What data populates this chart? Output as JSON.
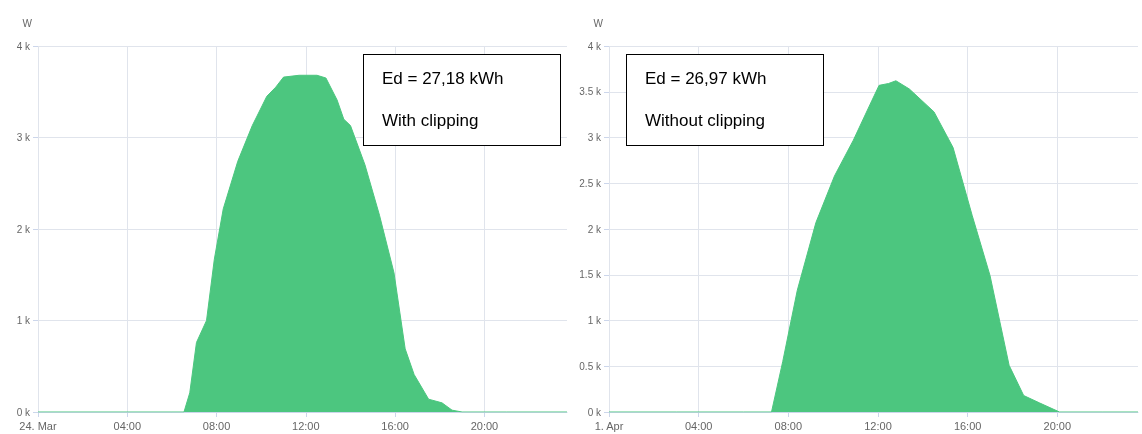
{
  "chart_data": [
    {
      "type": "area",
      "ylabel": "W",
      "color": "#4cc67f",
      "grid": true,
      "marker": "none",
      "x": [
        0,
        3,
        6,
        6.54,
        6.8,
        7.1,
        7.55,
        7.9,
        8.3,
        8.95,
        9.6,
        10.25,
        10.65,
        11.0,
        11.7,
        12.5,
        12.9,
        13.4,
        13.7,
        14.0,
        14.65,
        15.3,
        15.95,
        16.45,
        16.85,
        17.5,
        18.1,
        18.55,
        19.0,
        21,
        23.7
      ],
      "values": [
        0,
        0,
        0,
        0,
        210,
        760,
        1000,
        1670,
        2220,
        2740,
        3130,
        3450,
        3550,
        3660,
        3680,
        3680,
        3650,
        3410,
        3200,
        3130,
        2700,
        2150,
        1520,
        690,
        410,
        140,
        100,
        20,
        0,
        0,
        0
      ],
      "xlim": [
        0,
        23.7
      ],
      "xticks": [
        {
          "value": 0,
          "label": "24. Mar"
        },
        {
          "value": 4,
          "label": "04:00"
        },
        {
          "value": 8,
          "label": "08:00"
        },
        {
          "value": 12,
          "label": "12:00"
        },
        {
          "value": 16,
          "label": "16:00"
        },
        {
          "value": 20,
          "label": "20:00"
        }
      ],
      "ylim": [
        0,
        4000
      ],
      "yticks": [
        {
          "value": 0,
          "label": "0 k"
        },
        {
          "value": 1000,
          "label": "1 k"
        },
        {
          "value": 2000,
          "label": "2 k"
        },
        {
          "value": 3000,
          "label": "3 k"
        },
        {
          "value": 4000,
          "label": "4 k"
        }
      ],
      "annotations": [
        "Ed = 27,18 kWh",
        "With clipping"
      ]
    },
    {
      "type": "area",
      "ylabel": "W",
      "color": "#4cc67f",
      "grid": true,
      "marker": "none",
      "x": [
        0,
        3,
        6,
        7.25,
        7.75,
        8.4,
        9.23,
        10.06,
        10.9,
        11.72,
        12.05,
        12.47,
        12.8,
        13.4,
        14.5,
        15.35,
        16.2,
        17.0,
        17.85,
        18.5,
        19.2,
        20.1,
        22,
        23.6
      ],
      "values": [
        0,
        0,
        0,
        0,
        550,
        1330,
        2070,
        2580,
        2970,
        3400,
        3570,
        3590,
        3620,
        3530,
        3280,
        2890,
        2150,
        1490,
        510,
        180,
        100,
        0,
        0,
        0
      ],
      "xlim": [
        0,
        23.6
      ],
      "xticks": [
        {
          "value": 0,
          "label": "1. Apr"
        },
        {
          "value": 4,
          "label": "04:00"
        },
        {
          "value": 8,
          "label": "08:00"
        },
        {
          "value": 12,
          "label": "12:00"
        },
        {
          "value": 16,
          "label": "16:00"
        },
        {
          "value": 20,
          "label": "20:00"
        }
      ],
      "ylim": [
        0,
        4000
      ],
      "yticks": [
        {
          "value": 0,
          "label": "0 k"
        },
        {
          "value": 500,
          "label": "0.5 k"
        },
        {
          "value": 1000,
          "label": "1 k"
        },
        {
          "value": 1500,
          "label": "1.5 k"
        },
        {
          "value": 2000,
          "label": "2 k"
        },
        {
          "value": 2500,
          "label": "2.5 k"
        },
        {
          "value": 3000,
          "label": "3 k"
        },
        {
          "value": 3500,
          "label": "3.5 k"
        },
        {
          "value": 4000,
          "label": "4 k"
        }
      ],
      "annotations": [
        "Ed = 26,97 kWh",
        "Without clipping"
      ]
    }
  ]
}
